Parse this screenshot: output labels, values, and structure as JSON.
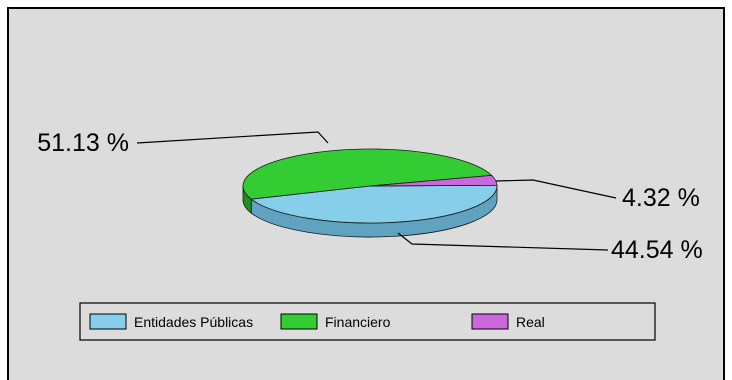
{
  "chart_data": {
    "type": "pie",
    "style": "3d",
    "slices": [
      {
        "name": "Entidades Públicas",
        "value": 44.54,
        "label": "44.54 %",
        "color": "#87ceeb",
        "side_color": "#5fa3c0"
      },
      {
        "name": "Financiero",
        "value": 51.13,
        "label": "51.13 %",
        "color": "#33cc33",
        "side_color": "#1f8f1f"
      },
      {
        "name": "Real",
        "value": 4.32,
        "label": "4.32 %",
        "color": "#cc66dd",
        "side_color": "#8e3f9c"
      }
    ],
    "legend_position": "bottom",
    "background": "#dcdcdc"
  }
}
